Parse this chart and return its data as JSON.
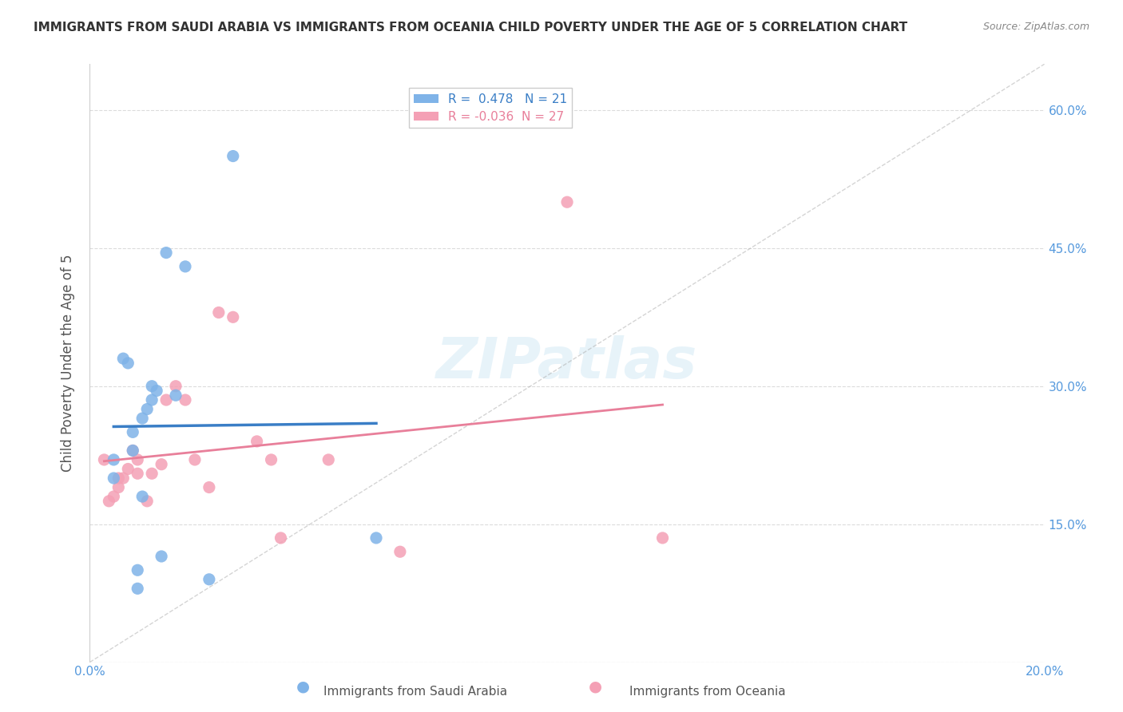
{
  "title": "IMMIGRANTS FROM SAUDI ARABIA VS IMMIGRANTS FROM OCEANIA CHILD POVERTY UNDER THE AGE OF 5 CORRELATION CHART",
  "source": "Source: ZipAtlas.com",
  "xlabel_bottom": "",
  "ylabel": "Child Poverty Under the Age of 5",
  "x_min": 0.0,
  "x_max": 0.2,
  "y_min": 0.0,
  "y_max": 0.65,
  "x_ticks": [
    0.0,
    0.05,
    0.1,
    0.15,
    0.2
  ],
  "x_tick_labels": [
    "0.0%",
    "",
    "",
    "",
    "20.0%"
  ],
  "y_ticks": [
    0.0,
    0.15,
    0.3,
    0.45,
    0.6
  ],
  "y_tick_labels": [
    "",
    "15.0%",
    "30.0%",
    "45.0%",
    "60.0%"
  ],
  "R_saudi": 0.478,
  "N_saudi": 21,
  "R_oceania": -0.036,
  "N_oceania": 27,
  "legend_label_saudi": "Immigrants from Saudi Arabia",
  "legend_label_oceania": "Immigrants from Oceania",
  "color_saudi": "#7fb3e8",
  "color_oceania": "#f4a0b5",
  "line_color_saudi": "#3a7ec6",
  "line_color_oceania": "#e87f9a",
  "watermark": "ZIPatlas",
  "background_color": "#ffffff",
  "grid_color": "#cccccc",
  "saudi_x": [
    0.005,
    0.005,
    0.007,
    0.008,
    0.009,
    0.009,
    0.01,
    0.01,
    0.011,
    0.011,
    0.012,
    0.013,
    0.013,
    0.014,
    0.015,
    0.016,
    0.018,
    0.02,
    0.025,
    0.03,
    0.06
  ],
  "saudi_y": [
    0.22,
    0.2,
    0.33,
    0.325,
    0.23,
    0.25,
    0.08,
    0.1,
    0.265,
    0.18,
    0.275,
    0.285,
    0.3,
    0.295,
    0.115,
    0.445,
    0.29,
    0.43,
    0.09,
    0.55,
    0.135
  ],
  "oceania_x": [
    0.003,
    0.004,
    0.005,
    0.006,
    0.006,
    0.007,
    0.008,
    0.009,
    0.01,
    0.01,
    0.012,
    0.013,
    0.015,
    0.016,
    0.018,
    0.02,
    0.022,
    0.025,
    0.027,
    0.03,
    0.035,
    0.038,
    0.04,
    0.05,
    0.065,
    0.1,
    0.12
  ],
  "oceania_y": [
    0.22,
    0.175,
    0.18,
    0.19,
    0.2,
    0.2,
    0.21,
    0.23,
    0.205,
    0.22,
    0.175,
    0.205,
    0.215,
    0.285,
    0.3,
    0.285,
    0.22,
    0.19,
    0.38,
    0.375,
    0.24,
    0.22,
    0.135,
    0.22,
    0.12,
    0.5,
    0.135
  ]
}
